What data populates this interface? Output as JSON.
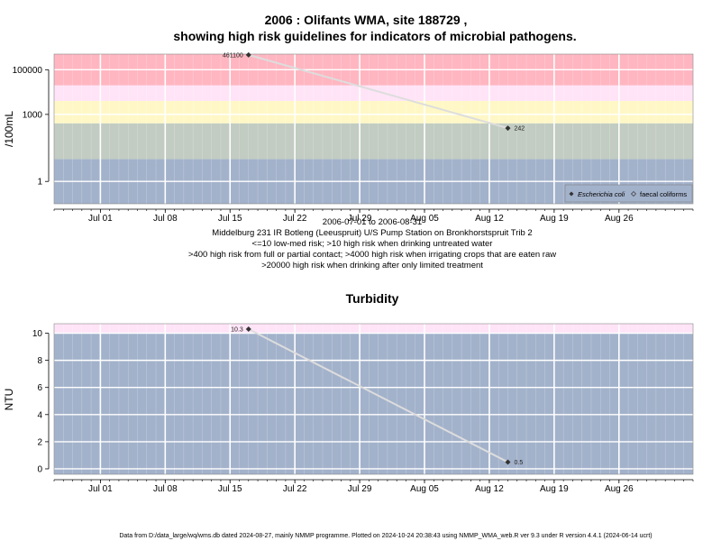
{
  "colors": {
    "risk_red": "#FFB6C1",
    "risk_pink": "#FFE4F7",
    "risk_yellow": "#FFF8C6",
    "risk_green": "#C2CCC2",
    "risk_blue": "#A3B2CB",
    "gridline": "#ffffff",
    "series_line": "#DDDDDD",
    "point": "#333333"
  },
  "chart_data": [
    {
      "type": "line",
      "title_line1": "2006 : Olifants WMA, site 188729 ,",
      "title_line2": "showing high risk guidelines for indicators of microbial pathogens.",
      "ylabel": "/100mL",
      "yscale": "log",
      "yticks": [
        1,
        1000,
        100000
      ],
      "ytick_labels": [
        "1",
        "1000",
        "100000"
      ],
      "ylim": [
        0.1,
        500000
      ],
      "xlim": [
        "2006-06-26",
        "2006-09-03"
      ],
      "xticks": [
        "2006-07-01",
        "2006-07-08",
        "2006-07-15",
        "2006-07-22",
        "2006-07-29",
        "2006-08-05",
        "2006-08-12",
        "2006-08-19",
        "2006-08-26"
      ],
      "xtick_labels": [
        "Jul 01",
        "Jul 08",
        "Jul 15",
        "Jul 22",
        "Jul 29",
        "Aug 05",
        "Aug 12",
        "Aug 19",
        "Aug 26"
      ],
      "bands": [
        {
          "from": 0.1,
          "to": 10,
          "color": "#A3B2CB"
        },
        {
          "from": 10,
          "to": 400,
          "color": "#C2CCC2"
        },
        {
          "from": 400,
          "to": 4000,
          "color": "#FFF8C6"
        },
        {
          "from": 4000,
          "to": 20000,
          "color": "#FFE4F7"
        },
        {
          "from": 20000,
          "to": 500000,
          "color": "#FFB6C1"
        }
      ],
      "series": [
        {
          "name": "Escherichia coli",
          "x": [
            "2006-07-17",
            "2006-08-14"
          ],
          "y": [
            461100,
            242
          ],
          "labels": [
            "461100",
            "242"
          ]
        }
      ],
      "legend": {
        "entries": [
          "Escherichia coli",
          "faecal coliforms"
        ],
        "placement": "bottom-right"
      },
      "caption_lines": [
        "2006-07-01 to 2006-08-31",
        "Middelburg 231 IR Botleng (Leeuspruit) U/S Pump Station on Bronkhorstspruit Trib 2",
        "<=10 low-med risk; >10 high risk when drinking untreated water",
        ">400 high risk from full or partial contact; >4000 high risk when irrigating crops that are eaten raw",
        ">20000 high risk when drinking after only limited treatment"
      ]
    },
    {
      "type": "line",
      "title": "Turbidity",
      "ylabel": "NTU",
      "yscale": "linear",
      "yticks": [
        0,
        2,
        4,
        6,
        8,
        10
      ],
      "ytick_labels": [
        "0",
        "2",
        "4",
        "6",
        "8",
        "10"
      ],
      "ylim": [
        -0.4,
        10.7
      ],
      "xlim": [
        "2006-06-26",
        "2006-09-03"
      ],
      "xticks": [
        "2006-07-01",
        "2006-07-08",
        "2006-07-15",
        "2006-07-22",
        "2006-07-29",
        "2006-08-05",
        "2006-08-12",
        "2006-08-19",
        "2006-08-26"
      ],
      "xtick_labels": [
        "Jul 01",
        "Jul 08",
        "Jul 15",
        "Jul 22",
        "Jul 29",
        "Aug 05",
        "Aug 12",
        "Aug 19",
        "Aug 26"
      ],
      "bands": [
        {
          "from": -0.4,
          "to": 10,
          "color": "#A3B2CB"
        },
        {
          "from": 10,
          "to": 10.7,
          "color": "#FFE4F7"
        }
      ],
      "series": [
        {
          "x": [
            "2006-07-17",
            "2006-08-14"
          ],
          "y": [
            10.3,
            0.5
          ],
          "labels": [
            "10.3",
            "0.5"
          ]
        }
      ]
    }
  ],
  "footer": "Data from D:/data_large/wq/wms.db dated 2024-08-27, mainly NMMP programme. Plotted on 2024-10-24 20:38:43 using NMMP_WMA_web.R ver 9.3 under R version 4.4.1 (2024-06-14 ucrt)"
}
